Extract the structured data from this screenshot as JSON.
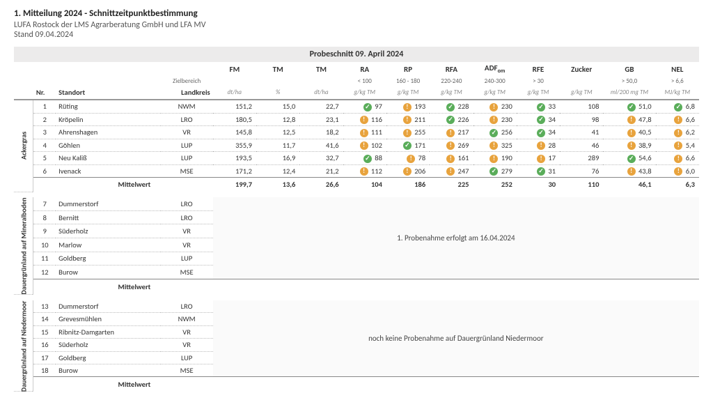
{
  "header": {
    "title": "1. Mitteilung 2024 - Schnittzeitpunktbestimmung",
    "org": "LUFA Rostock der LMS Agrarberatung GmbH und LFA MV",
    "date": "Stand 09.04.2024",
    "section": "Probeschnitt 09. April 2024"
  },
  "columns": {
    "nr": "Nr.",
    "standort": "Standort",
    "zielbereich": "Zielbereich",
    "landkreis": "Landkreis",
    "fm": "FM",
    "tm1": "TM",
    "tm2": "TM",
    "ra": "RA",
    "rp": "RP",
    "rfa": "RFA",
    "adf": "ADF",
    "adf_sub": "om",
    "rfe": "RFE",
    "zucker": "Zucker",
    "gb": "GB",
    "nel": "NEL"
  },
  "ranges": {
    "ra": "< 100",
    "rp": "160 - 180",
    "rfa": "220-240",
    "adf": "240-300",
    "rfe": "> 30",
    "gb": "> 50,0",
    "nel": "> 6,6"
  },
  "units": {
    "fm": "dt/ha",
    "tm1": "%",
    "tm2": "dt/ha",
    "ra": "g/kg TM",
    "rp": "g/kg TM",
    "rfa": "g/kg TM",
    "adf": "g/kg TM",
    "rfe": "g/kg TM",
    "zucker": "g/kg TM",
    "gb": "ml/200 mg TM",
    "nel": "MJ/kg TM"
  },
  "groups": [
    {
      "label": "Ackergras",
      "rows": [
        {
          "nr": "1",
          "name": "Rüting",
          "lk": "NWM",
          "fm": "151,2",
          "tm1": "15,0",
          "tm2": "22,7",
          "ra": {
            "v": "97",
            "s": "ok"
          },
          "rp": {
            "v": "193",
            "s": "warn"
          },
          "rfa": {
            "v": "228",
            "s": "ok"
          },
          "adf": {
            "v": "230",
            "s": "warn"
          },
          "rfe": {
            "v": "33",
            "s": "ok"
          },
          "zucker": "108",
          "gb": {
            "v": "51,0",
            "s": "ok"
          },
          "nel": {
            "v": "6,8",
            "s": "ok"
          }
        },
        {
          "nr": "2",
          "name": "Kröpelin",
          "lk": "LRO",
          "fm": "180,5",
          "tm1": "12,8",
          "tm2": "23,1",
          "ra": {
            "v": "116",
            "s": "warn"
          },
          "rp": {
            "v": "211",
            "s": "warn"
          },
          "rfa": {
            "v": "226",
            "s": "ok"
          },
          "adf": {
            "v": "230",
            "s": "warn"
          },
          "rfe": {
            "v": "34",
            "s": "ok"
          },
          "zucker": "98",
          "gb": {
            "v": "47,8",
            "s": "warn"
          },
          "nel": {
            "v": "6,6",
            "s": "warn"
          }
        },
        {
          "nr": "3",
          "name": "Ahrenshagen",
          "lk": "VR",
          "fm": "145,8",
          "tm1": "12,5",
          "tm2": "18,2",
          "ra": {
            "v": "111",
            "s": "warn"
          },
          "rp": {
            "v": "255",
            "s": "warn"
          },
          "rfa": {
            "v": "217",
            "s": "warn"
          },
          "adf": {
            "v": "256",
            "s": "ok"
          },
          "rfe": {
            "v": "34",
            "s": "ok"
          },
          "zucker": "41",
          "gb": {
            "v": "40,5",
            "s": "warn"
          },
          "nel": {
            "v": "6,2",
            "s": "warn"
          }
        },
        {
          "nr": "4",
          "name": "Göhlen",
          "lk": "LUP",
          "fm": "355,9",
          "tm1": "11,7",
          "tm2": "41,6",
          "ra": {
            "v": "102",
            "s": "warn"
          },
          "rp": {
            "v": "171",
            "s": "ok"
          },
          "rfa": {
            "v": "269",
            "s": "warn"
          },
          "adf": {
            "v": "325",
            "s": "warn"
          },
          "rfe": {
            "v": "28",
            "s": "warn"
          },
          "zucker": "46",
          "gb": {
            "v": "38,9",
            "s": "warn"
          },
          "nel": {
            "v": "5,4",
            "s": "warn"
          }
        },
        {
          "nr": "5",
          "name": "Neu Kaliß",
          "lk": "LUP",
          "fm": "193,5",
          "tm1": "16,9",
          "tm2": "32,7",
          "ra": {
            "v": "88",
            "s": "ok"
          },
          "rp": {
            "v": "78",
            "s": "warn"
          },
          "rfa": {
            "v": "161",
            "s": "warn"
          },
          "adf": {
            "v": "190",
            "s": "warn"
          },
          "rfe": {
            "v": "17",
            "s": "warn"
          },
          "zucker": "289",
          "gb": {
            "v": "54,6",
            "s": "ok"
          },
          "nel": {
            "v": "6,6",
            "s": "warn"
          }
        },
        {
          "nr": "6",
          "name": "Ivenack",
          "lk": "MSE",
          "fm": "171,2",
          "tm1": "12,4",
          "tm2": "21,2",
          "ra": {
            "v": "112",
            "s": "warn"
          },
          "rp": {
            "v": "206",
            "s": "warn"
          },
          "rfa": {
            "v": "247",
            "s": "warn"
          },
          "adf": {
            "v": "279",
            "s": "ok"
          },
          "rfe": {
            "v": "31",
            "s": "ok"
          },
          "zucker": "76",
          "gb": {
            "v": "43,8",
            "s": "warn"
          },
          "nel": {
            "v": "6,0",
            "s": "warn"
          }
        }
      ],
      "mean": {
        "label": "Mittelwert",
        "fm": "199,7",
        "tm1": "13,6",
        "tm2": "26,6",
        "ra": "104",
        "rp": "186",
        "rfa": "225",
        "adf": "252",
        "rfe": "30",
        "zucker": "110",
        "gb": "46,1",
        "nel": "6,3"
      }
    },
    {
      "label": "Dauergrünland auf Mineralboden",
      "message": "1. Probenahme erfolgt am 16.04.2024",
      "rows": [
        {
          "nr": "7",
          "name": "Dummerstorf",
          "lk": "LRO"
        },
        {
          "nr": "8",
          "name": "Bernitt",
          "lk": "LRO"
        },
        {
          "nr": "9",
          "name": "Süderholz",
          "lk": "VR"
        },
        {
          "nr": "10",
          "name": "Marlow",
          "lk": "VR"
        },
        {
          "nr": "11",
          "name": "Goldberg",
          "lk": "LUP"
        },
        {
          "nr": "12",
          "name": "Burow",
          "lk": "MSE"
        }
      ],
      "mean": {
        "label": "Mittelwert"
      }
    },
    {
      "label": "Dauergrünland auf Niedermoor",
      "message": "noch keine Probenahme auf Dauergrünland Niedermoor",
      "rows": [
        {
          "nr": "13",
          "name": "Dummerstorf",
          "lk": "LRO"
        },
        {
          "nr": "14",
          "name": "Grevesmühlen",
          "lk": "NWM"
        },
        {
          "nr": "15",
          "name": "Ribnitz-Damgarten",
          "lk": "VR"
        },
        {
          "nr": "16",
          "name": "Süderholz",
          "lk": "VR"
        },
        {
          "nr": "17",
          "name": "Goldberg",
          "lk": "LUP"
        },
        {
          "nr": "18",
          "name": "Burow",
          "lk": "MSE"
        }
      ],
      "mean": {
        "label": "Mittelwert"
      }
    }
  ],
  "colors": {
    "ok": "#5aad5a",
    "warn": "#e8a33d",
    "header_bg": "#ecebeb"
  }
}
